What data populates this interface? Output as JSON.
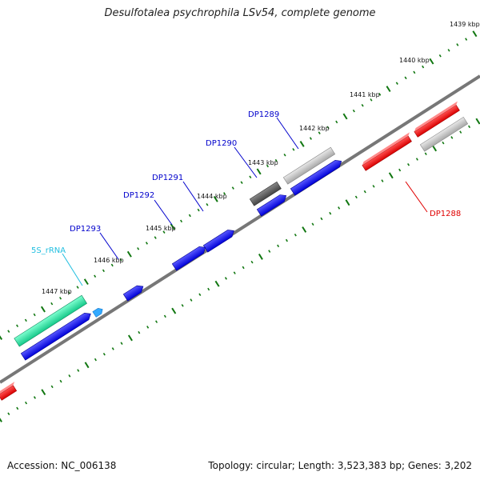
{
  "title": "Desulfotalea psychrophila LSv54, complete genome",
  "footer": {
    "accession": "Accession: NC_006138",
    "summary": "Topology: circular; Length: 3,523,383 bp; Genes: 3,202"
  },
  "scale": {
    "ticks": [
      "1439 kbp",
      "1440 kbp",
      "1441 kbp",
      "1442 kbp",
      "1443 kbp",
      "1444 kbp",
      "1445 kbp",
      "1446 kbp",
      "1447 kbp"
    ]
  },
  "genes": [
    {
      "label": "DP1288",
      "color": "#e00000"
    },
    {
      "label": "DP1289",
      "color": "#0000cc"
    },
    {
      "label": "DP1290",
      "color": "#0000cc"
    },
    {
      "label": "DP1291",
      "color": "#0000cc"
    },
    {
      "label": "DP1292",
      "color": "#0000cc"
    },
    {
      "label": "DP1293",
      "color": "#0000cc"
    },
    {
      "label": "5S_rRNA",
      "color": "#22bfe0"
    }
  ],
  "colors": {
    "cds_forward": "#0000ff",
    "cds_reverse": "#ff0000",
    "rrna": "#22e8a8",
    "trna": "#33aaff",
    "gray_feature": "#bbbbbb",
    "dark_feature": "#555555",
    "backbone": "#777777",
    "tick": "#117711"
  }
}
